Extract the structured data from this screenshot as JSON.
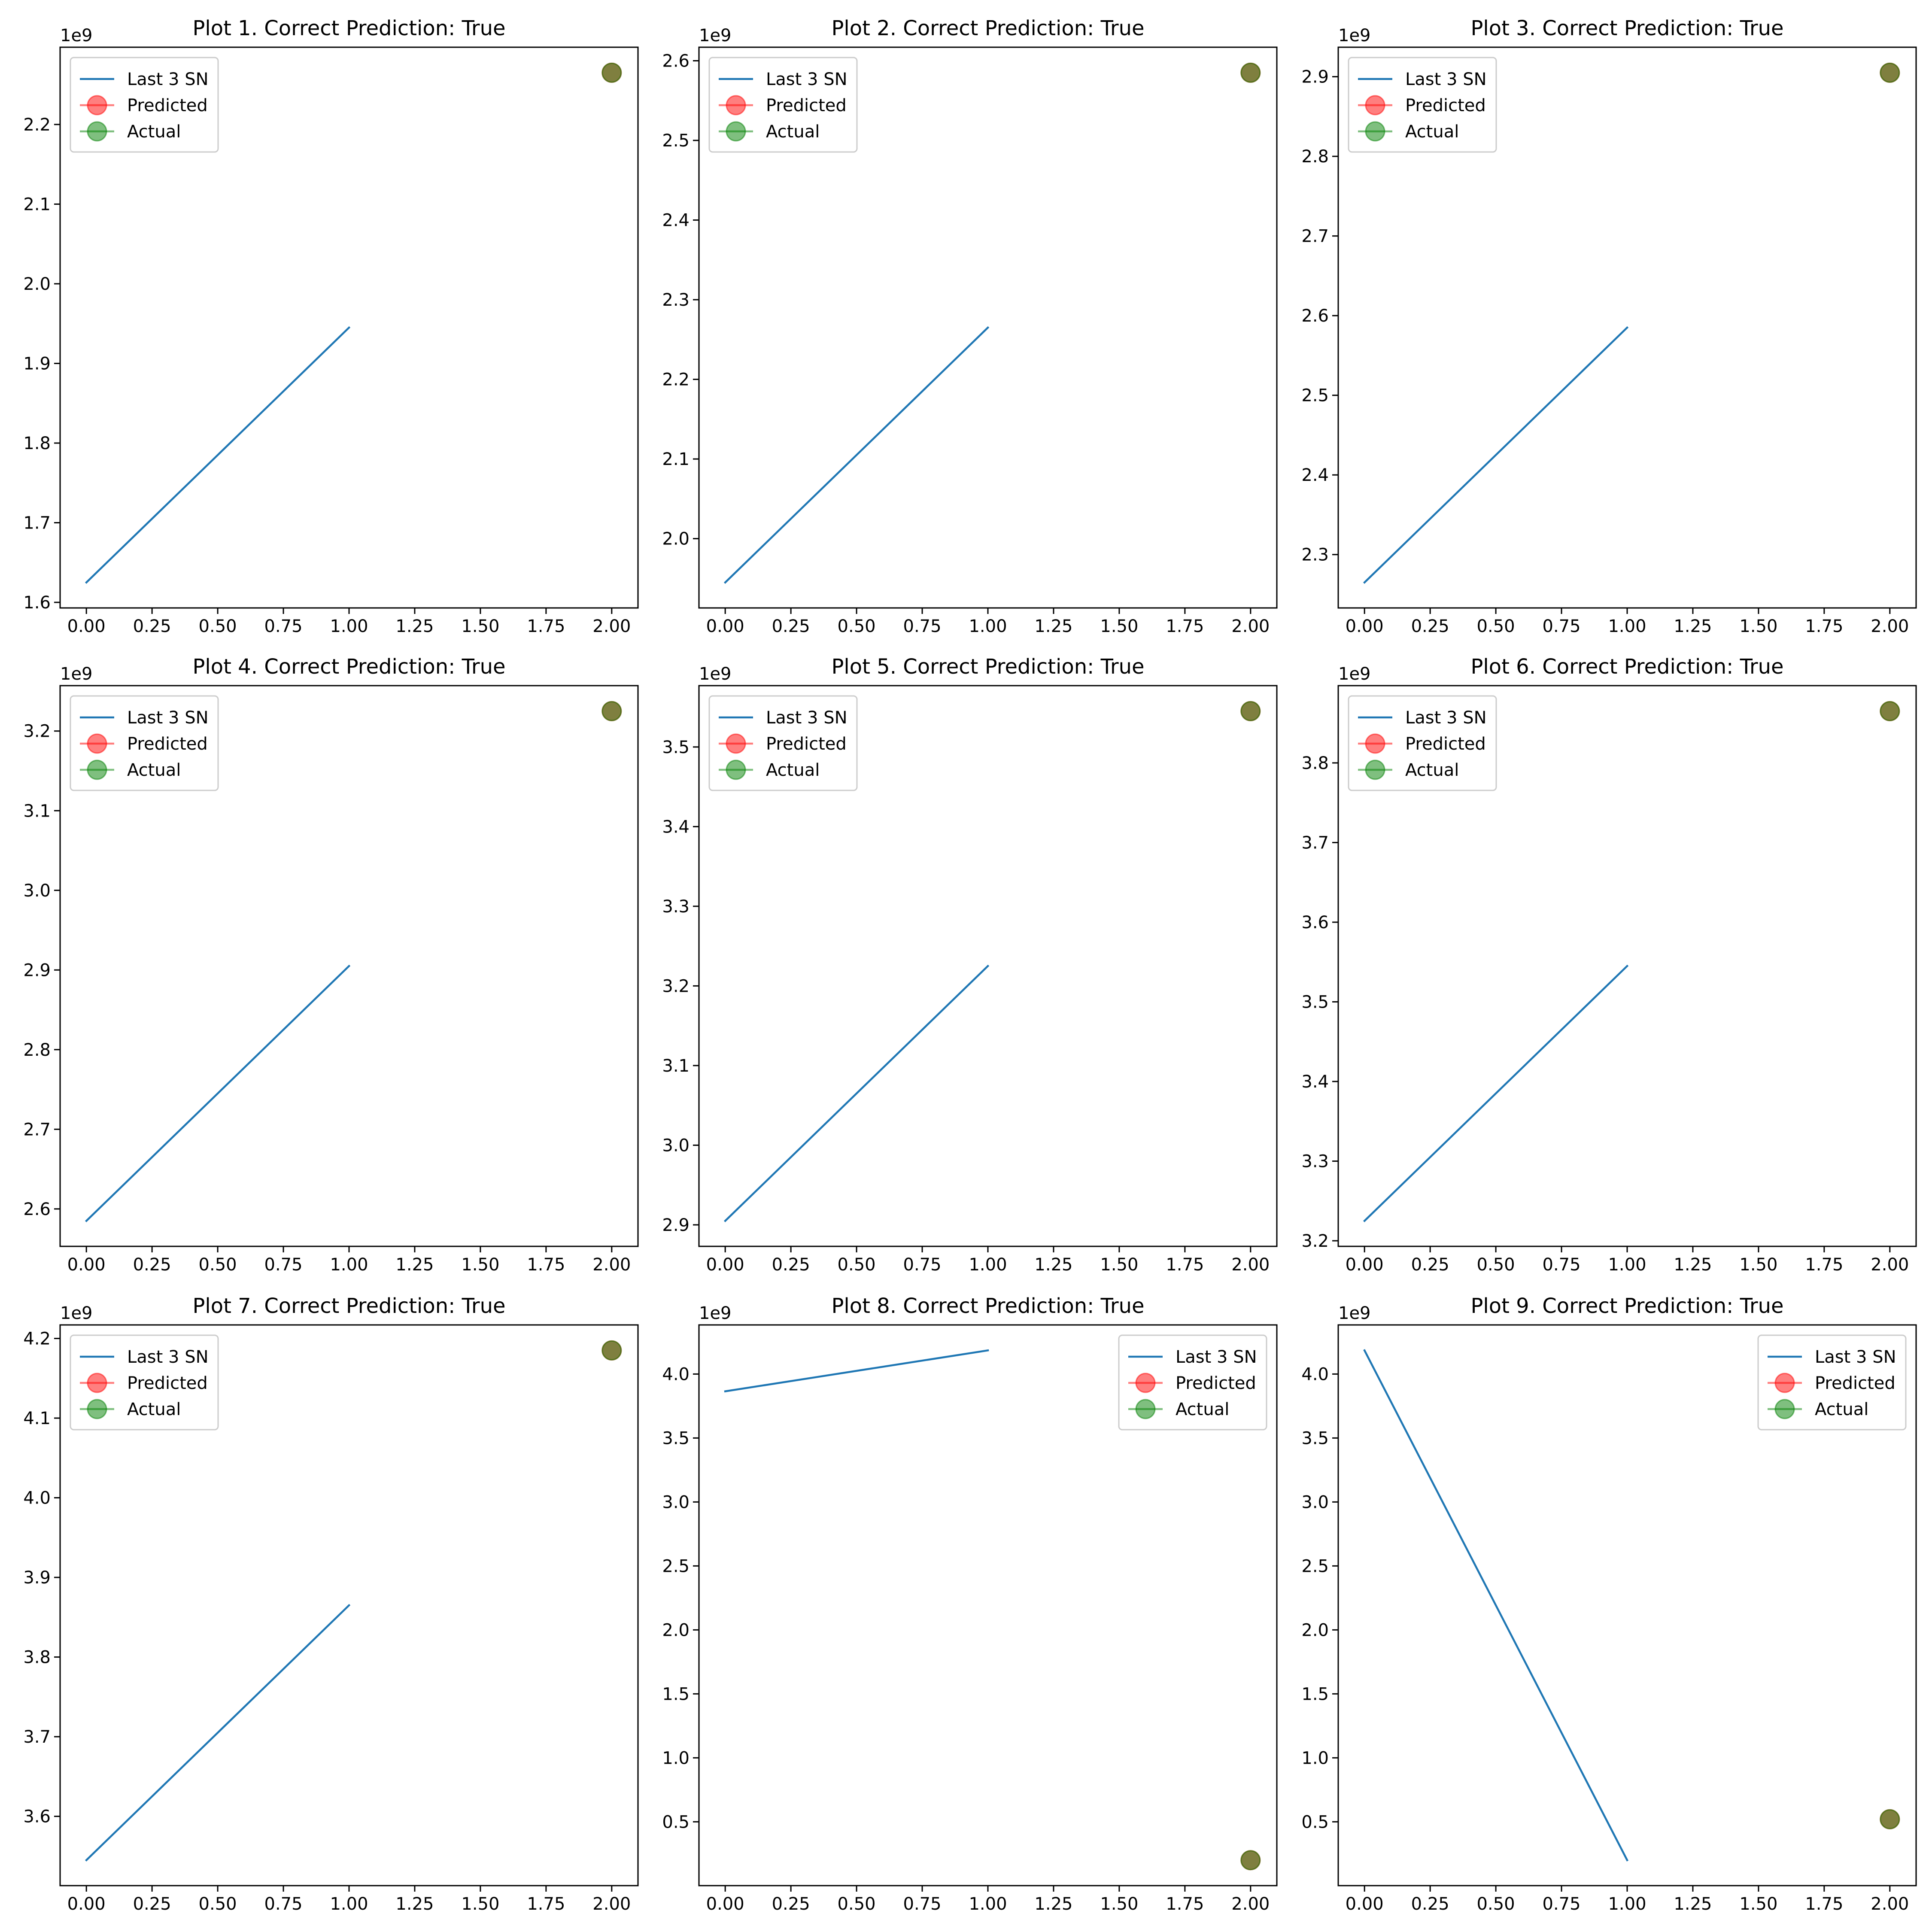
{
  "colors": {
    "line": "#1f77b4",
    "predicted": "#ff0000",
    "actual": "#008000",
    "overlap_marker": "#7a7a3c",
    "axes": "#000000",
    "background": "#ffffff"
  },
  "legend_labels": [
    "Last 3 SN",
    "Predicted",
    "Actual"
  ],
  "offset_label": "1e9",
  "chart_data": [
    {
      "type": "line",
      "title": "Plot 1. Correct Prediction: True",
      "x": [
        0,
        1
      ],
      "values": [
        1.625,
        1.945
      ],
      "predicted": {
        "x": 2,
        "y": 2.265
      },
      "actual": {
        "x": 2,
        "y": 2.265
      },
      "xlim": [
        -0.1,
        2.1
      ],
      "ylim": [
        1.593,
        2.297
      ],
      "xticks": [
        "0.00",
        "0.25",
        "0.50",
        "0.75",
        "1.00",
        "1.25",
        "1.50",
        "1.75",
        "2.00"
      ],
      "yticks": [
        "1.6",
        "1.7",
        "1.8",
        "1.9",
        "2.0",
        "2.1",
        "2.2"
      ],
      "ytick_values": [
        1.6,
        1.7,
        1.8,
        1.9,
        2.0,
        2.1,
        2.2
      ],
      "legend_position": "upper left"
    },
    {
      "type": "line",
      "title": "Plot 2. Correct Prediction: True",
      "x": [
        0,
        1
      ],
      "values": [
        1.945,
        2.265
      ],
      "predicted": {
        "x": 2,
        "y": 2.585
      },
      "actual": {
        "x": 2,
        "y": 2.585
      },
      "xlim": [
        -0.1,
        2.1
      ],
      "ylim": [
        1.913,
        2.617
      ],
      "xticks": [
        "0.00",
        "0.25",
        "0.50",
        "0.75",
        "1.00",
        "1.25",
        "1.50",
        "1.75",
        "2.00"
      ],
      "yticks": [
        "2.0",
        "2.1",
        "2.2",
        "2.3",
        "2.4",
        "2.5",
        "2.6"
      ],
      "ytick_values": [
        2.0,
        2.1,
        2.2,
        2.3,
        2.4,
        2.5,
        2.6
      ],
      "legend_position": "upper left"
    },
    {
      "type": "line",
      "title": "Plot 3. Correct Prediction: True",
      "x": [
        0,
        1
      ],
      "values": [
        2.265,
        2.585
      ],
      "predicted": {
        "x": 2,
        "y": 2.905
      },
      "actual": {
        "x": 2,
        "y": 2.905
      },
      "xlim": [
        -0.1,
        2.1
      ],
      "ylim": [
        2.233,
        2.937
      ],
      "xticks": [
        "0.00",
        "0.25",
        "0.50",
        "0.75",
        "1.00",
        "1.25",
        "1.50",
        "1.75",
        "2.00"
      ],
      "yticks": [
        "2.3",
        "2.4",
        "2.5",
        "2.6",
        "2.7",
        "2.8",
        "2.9"
      ],
      "ytick_values": [
        2.3,
        2.4,
        2.5,
        2.6,
        2.7,
        2.8,
        2.9
      ],
      "legend_position": "upper left"
    },
    {
      "type": "line",
      "title": "Plot 4. Correct Prediction: True",
      "x": [
        0,
        1
      ],
      "values": [
        2.585,
        2.905
      ],
      "predicted": {
        "x": 2,
        "y": 3.225
      },
      "actual": {
        "x": 2,
        "y": 3.225
      },
      "xlim": [
        -0.1,
        2.1
      ],
      "ylim": [
        2.553,
        3.257
      ],
      "xticks": [
        "0.00",
        "0.25",
        "0.50",
        "0.75",
        "1.00",
        "1.25",
        "1.50",
        "1.75",
        "2.00"
      ],
      "yticks": [
        "2.6",
        "2.7",
        "2.8",
        "2.9",
        "3.0",
        "3.1",
        "3.2"
      ],
      "ytick_values": [
        2.6,
        2.7,
        2.8,
        2.9,
        3.0,
        3.1,
        3.2
      ],
      "legend_position": "upper left"
    },
    {
      "type": "line",
      "title": "Plot 5. Correct Prediction: True",
      "x": [
        0,
        1
      ],
      "values": [
        2.905,
        3.225
      ],
      "predicted": {
        "x": 2,
        "y": 3.545
      },
      "actual": {
        "x": 2,
        "y": 3.545
      },
      "xlim": [
        -0.1,
        2.1
      ],
      "ylim": [
        2.873,
        3.577
      ],
      "xticks": [
        "0.00",
        "0.25",
        "0.50",
        "0.75",
        "1.00",
        "1.25",
        "1.50",
        "1.75",
        "2.00"
      ],
      "yticks": [
        "2.9",
        "3.0",
        "3.1",
        "3.2",
        "3.3",
        "3.4",
        "3.5"
      ],
      "ytick_values": [
        2.9,
        3.0,
        3.1,
        3.2,
        3.3,
        3.4,
        3.5
      ],
      "legend_position": "upper left"
    },
    {
      "type": "line",
      "title": "Plot 6. Correct Prediction: True",
      "x": [
        0,
        1
      ],
      "values": [
        3.225,
        3.545
      ],
      "predicted": {
        "x": 2,
        "y": 3.865
      },
      "actual": {
        "x": 2,
        "y": 3.865
      },
      "xlim": [
        -0.1,
        2.1
      ],
      "ylim": [
        3.193,
        3.897
      ],
      "xticks": [
        "0.00",
        "0.25",
        "0.50",
        "0.75",
        "1.00",
        "1.25",
        "1.50",
        "1.75",
        "2.00"
      ],
      "yticks": [
        "3.2",
        "3.3",
        "3.4",
        "3.5",
        "3.6",
        "3.7",
        "3.8"
      ],
      "ytick_values": [
        3.2,
        3.3,
        3.4,
        3.5,
        3.6,
        3.7,
        3.8
      ],
      "legend_position": "upper left"
    },
    {
      "type": "line",
      "title": "Plot 7. Correct Prediction: True",
      "x": [
        0,
        1
      ],
      "values": [
        3.545,
        3.865
      ],
      "predicted": {
        "x": 2,
        "y": 4.185
      },
      "actual": {
        "x": 2,
        "y": 4.185
      },
      "xlim": [
        -0.1,
        2.1
      ],
      "ylim": [
        3.513,
        4.217
      ],
      "xticks": [
        "0.00",
        "0.25",
        "0.50",
        "0.75",
        "1.00",
        "1.25",
        "1.50",
        "1.75",
        "2.00"
      ],
      "yticks": [
        "3.6",
        "3.7",
        "3.8",
        "3.9",
        "4.0",
        "4.1",
        "4.2"
      ],
      "ytick_values": [
        3.6,
        3.7,
        3.8,
        3.9,
        4.0,
        4.1,
        4.2
      ],
      "legend_position": "upper left"
    },
    {
      "type": "line",
      "title": "Plot 8. Correct Prediction: True",
      "x": [
        0,
        1
      ],
      "values": [
        3.865,
        4.185
      ],
      "predicted": {
        "x": 2,
        "y": 0.2
      },
      "actual": {
        "x": 2,
        "y": 0.2
      },
      "xlim": [
        -0.1,
        2.1
      ],
      "ylim": [
        0.001,
        4.384
      ],
      "xticks": [
        "0.00",
        "0.25",
        "0.50",
        "0.75",
        "1.00",
        "1.25",
        "1.50",
        "1.75",
        "2.00"
      ],
      "yticks": [
        "0.5",
        "1.0",
        "1.5",
        "2.0",
        "2.5",
        "3.0",
        "3.5",
        "4.0"
      ],
      "ytick_values": [
        0.5,
        1.0,
        1.5,
        2.0,
        2.5,
        3.0,
        3.5,
        4.0
      ],
      "legend_position": "upper right"
    },
    {
      "type": "line",
      "title": "Plot 9. Correct Prediction: True",
      "x": [
        0,
        1
      ],
      "values": [
        4.185,
        0.2
      ],
      "predicted": {
        "x": 2,
        "y": 0.52
      },
      "actual": {
        "x": 2,
        "y": 0.52
      },
      "xlim": [
        -0.1,
        2.1
      ],
      "ylim": [
        0.001,
        4.384
      ],
      "xticks": [
        "0.00",
        "0.25",
        "0.50",
        "0.75",
        "1.00",
        "1.25",
        "1.50",
        "1.75",
        "2.00"
      ],
      "yticks": [
        "0.5",
        "1.0",
        "1.5",
        "2.0",
        "2.5",
        "3.0",
        "3.5",
        "4.0"
      ],
      "ytick_values": [
        0.5,
        1.0,
        1.5,
        2.0,
        2.5,
        3.0,
        3.5,
        4.0
      ],
      "legend_position": "upper right"
    }
  ]
}
